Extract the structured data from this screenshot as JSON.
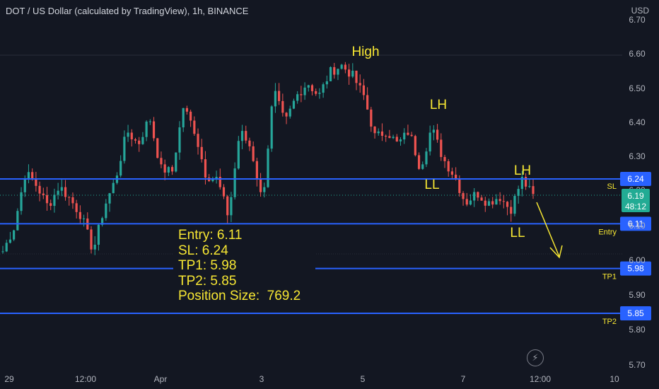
{
  "header": {
    "title": "DOT / US Dollar (calculated by TradingView), 1h, BINANCE",
    "currency": "USD"
  },
  "colors": {
    "background": "#131722",
    "up": "#26a69a",
    "down": "#ef5350",
    "level_line": "#2962ff",
    "annotation": "#f7e733",
    "axis_text": "#b2b5be",
    "current_price_badge": "#22ab94"
  },
  "info_box": {
    "lines": [
      "Entry: 6.11",
      "SL: 6.24",
      "TP1: 5.98",
      "TP2: 5.85",
      "Position Size:  769.2"
    ]
  },
  "icons": {
    "replay": "lightning-icon"
  },
  "chart_data": {
    "type": "candlestick",
    "ylim": [
      5.7,
      6.7
    ],
    "y_ticks": [
      "5.70",
      "5.80",
      "5.90",
      "6.00",
      "6.10",
      "6.20",
      "6.30",
      "6.40",
      "6.50",
      "6.60",
      "6.70"
    ],
    "x_ticks": [
      "29",
      "12:00",
      "Apr",
      "3",
      "5",
      "7",
      "12:00",
      "10"
    ],
    "grid": false,
    "current_price": {
      "value": "6.19",
      "countdown": "48:12"
    },
    "levels": [
      {
        "name": "SL",
        "value": "6.24",
        "label_below": false
      },
      {
        "name": "Entry",
        "value": "6.11",
        "label_below": true
      },
      {
        "name": "TP1",
        "value": "5.98",
        "label_below": true
      },
      {
        "name": "TP2",
        "value": "5.85",
        "label_below": true
      }
    ],
    "annotations": [
      "High",
      "LH",
      "LH",
      "LL",
      "LL"
    ],
    "close_path": [
      6.03,
      6.1,
      6.26,
      6.22,
      6.16,
      6.22,
      6.18,
      6.13,
      6.03,
      6.16,
      6.24,
      6.38,
      6.34,
      6.42,
      6.27,
      6.26,
      6.45,
      6.38,
      6.25,
      6.24,
      6.13,
      6.38,
      6.33,
      6.17,
      6.5,
      6.4,
      6.48,
      6.52,
      6.48,
      6.55,
      6.57,
      6.54,
      6.48,
      6.36,
      6.38,
      6.34,
      6.38,
      6.27,
      6.39,
      6.3,
      6.25,
      6.17,
      6.2,
      6.17,
      6.19,
      6.15,
      6.24,
      6.19
    ]
  }
}
